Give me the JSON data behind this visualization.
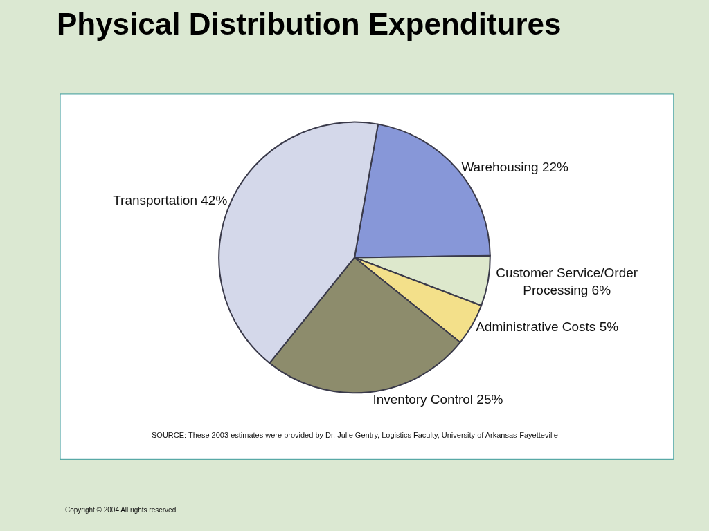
{
  "chart_data": {
    "type": "pie",
    "title": "Physical Distribution Expenditures",
    "categories": [
      "Warehousing",
      "Customer Service/Order Processing",
      "Administrative Costs",
      "Inventory Control",
      "Transportation"
    ],
    "values": [
      22,
      6,
      5,
      25,
      42
    ],
    "value_labels": [
      "22%",
      "6%",
      "5%",
      "25%",
      "42%"
    ],
    "colors": [
      "#8797d8",
      "#dde8cc",
      "#f3e08a",
      "#8d8c6c",
      "#d4d8ea"
    ],
    "annotations": [
      "SOURCE: These 2003 estimates were provided by Dr. Julie Gentry, Logistics Faculty, University of Arkansas-Fayetteville",
      "Copyright © 2004 All rights reserved"
    ]
  }
}
